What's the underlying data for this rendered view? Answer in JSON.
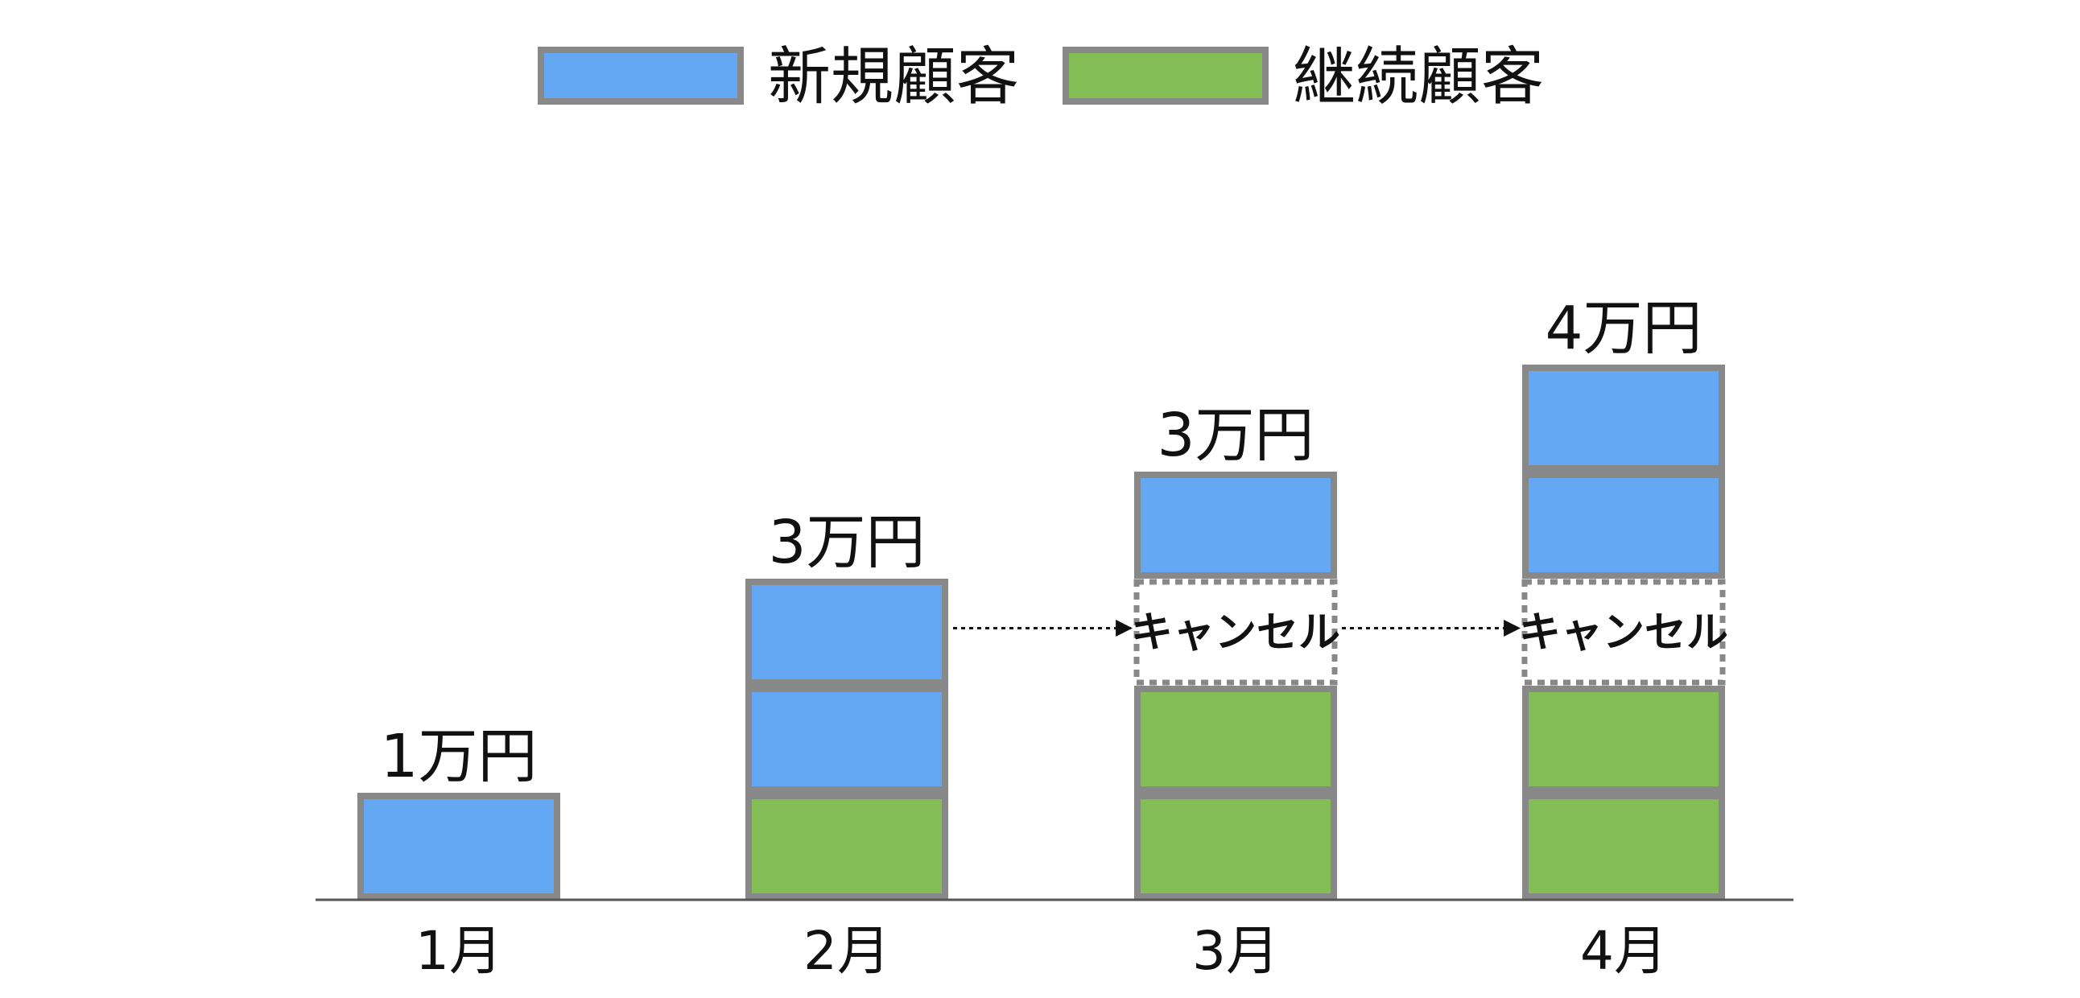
{
  "chart_data": {
    "type": "bar",
    "stacked": true,
    "categories": [
      "1月",
      "2月",
      "3月",
      "4月"
    ],
    "series": [
      {
        "name": "継続顧客",
        "color": "#82bd55",
        "values": [
          0,
          1,
          2,
          2
        ]
      },
      {
        "name": "新規顧客",
        "color": "#64a7f2",
        "values": [
          1,
          2,
          1,
          2
        ]
      }
    ],
    "cancel_segments": [
      {
        "category": "3月",
        "label": "キャンセル",
        "value": 1
      },
      {
        "category": "4月",
        "label": "キャンセル",
        "value": 1
      }
    ],
    "totals": [
      "1万円",
      "3万円",
      "3万円",
      "4万円"
    ],
    "unit_value": "1万円",
    "legend": {
      "position": "top-center"
    },
    "ylim": [
      0,
      6
    ],
    "grid": false,
    "border_color": "#888888"
  }
}
